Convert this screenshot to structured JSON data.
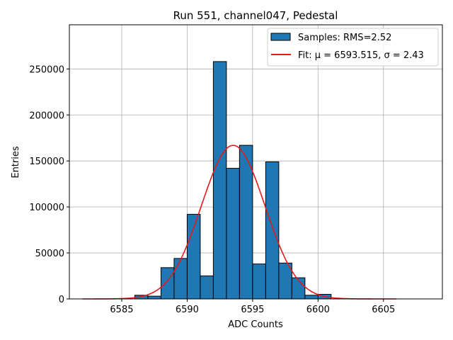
{
  "chart_data": {
    "type": "bar",
    "title": "Run 551, channel047, Pedestal",
    "xlabel": "ADC Counts",
    "ylabel": "Entries",
    "xlim": [
      6581.0,
      6609.5
    ],
    "ylim": [
      0,
      298000
    ],
    "grid": true,
    "legend_position": "top-right",
    "x_ticks": [
      6585,
      6590,
      6595,
      6600,
      6605
    ],
    "y_ticks": [
      0,
      50000,
      100000,
      150000,
      200000,
      250000
    ],
    "histogram": {
      "name": "Samples: RMS=2.52",
      "bin_edges": [
        6586.0,
        6587.0,
        6588.0,
        6589.0,
        6590.0,
        6591.0,
        6592.0,
        6593.0,
        6594.0,
        6595.0,
        6596.0,
        6597.0,
        6598.0,
        6599.0,
        6600.0,
        6601.0
      ],
      "values": [
        4000,
        3000,
        34000,
        44000,
        92000,
        25000,
        258000,
        142000,
        167000,
        38000,
        149000,
        39000,
        23000,
        4000,
        5000
      ],
      "color": "#1f77b4",
      "edge_color": "#000000"
    },
    "fit": {
      "name": "Fit: μ = 6593.515, σ = 2.43",
      "mu": 6593.515,
      "sigma": 2.43,
      "amplitude": 167000,
      "x_range": [
        6582,
        6606
      ],
      "color": "#e41a1c"
    }
  }
}
